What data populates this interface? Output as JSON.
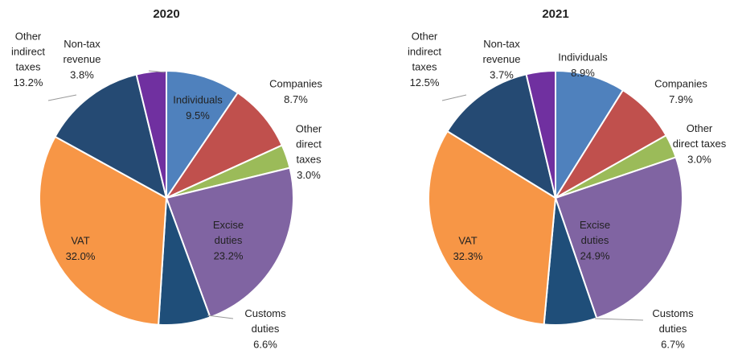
{
  "chart_data": [
    {
      "type": "pie",
      "title": "2020",
      "categories": [
        "Individuals",
        "Companies",
        "Other\ndirect\ntaxes",
        "Excise\nduties",
        "Customs\nduties",
        "VAT",
        "Other\nindirect\ntaxes",
        "Non-tax\nrevenue"
      ],
      "values": [
        9.5,
        8.7,
        3.0,
        23.2,
        6.6,
        32.0,
        13.2,
        3.8
      ],
      "value_labels": [
        "9.5%",
        "8.7%",
        "3.0%",
        "23.2%",
        "6.6%",
        "32.0%",
        "13.2%",
        "3.8%"
      ],
      "colors": [
        "#4f81bd",
        "#c0504d",
        "#9bbb59",
        "#8064a2",
        "#1f4e79",
        "#f79646",
        "#254a73",
        "#7030a0"
      ]
    },
    {
      "type": "pie",
      "title": "2021",
      "categories": [
        "Individuals",
        "Companies",
        "Other\ndirect taxes",
        "Excise\nduties",
        "Customs\nduties",
        "VAT",
        "Other\nindirect\ntaxes",
        "Non-tax\nrevenue"
      ],
      "values": [
        8.9,
        7.9,
        3.0,
        24.9,
        6.7,
        32.3,
        12.5,
        3.7
      ],
      "value_labels": [
        "8.9%",
        "7.9%",
        "3.0%",
        "24.9%",
        "6.7%",
        "32.3%",
        "12.5%",
        "3.7%"
      ],
      "colors": [
        "#4f81bd",
        "#c0504d",
        "#9bbb59",
        "#8064a2",
        "#1f4e79",
        "#f79646",
        "#254a73",
        "#7030a0"
      ]
    }
  ]
}
